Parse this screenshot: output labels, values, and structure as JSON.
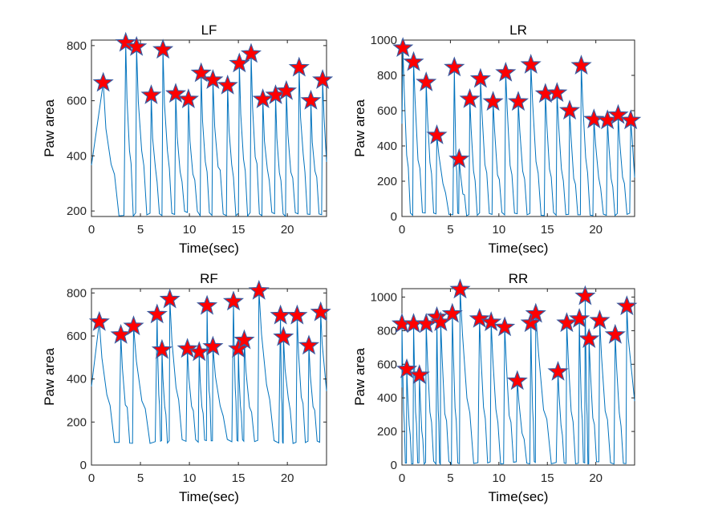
{
  "figure": {
    "background": "#ffffff",
    "line_color": "#0072bd",
    "marker_fill": "#ff0000",
    "marker_edge": "#3a5ba0"
  },
  "chart_data": [
    {
      "type": "line",
      "title": "LF",
      "xlabel": "Time(sec)",
      "ylabel": "Paw area",
      "xlim": [
        0,
        24
      ],
      "ylim": [
        180,
        820
      ],
      "xticks": [
        0,
        5,
        10,
        15,
        20
      ],
      "yticks": [
        200,
        400,
        600,
        800
      ],
      "grid": false,
      "baseline": 180,
      "peaks": [
        {
          "x": 1.2,
          "y": 665
        },
        {
          "x": 3.5,
          "y": 810
        },
        {
          "x": 4.6,
          "y": 795
        },
        {
          "x": 6.1,
          "y": 620
        },
        {
          "x": 7.3,
          "y": 785
        },
        {
          "x": 8.6,
          "y": 625
        },
        {
          "x": 9.9,
          "y": 605
        },
        {
          "x": 11.2,
          "y": 700
        },
        {
          "x": 12.4,
          "y": 675
        },
        {
          "x": 13.9,
          "y": 655
        },
        {
          "x": 15.1,
          "y": 735
        },
        {
          "x": 16.3,
          "y": 770
        },
        {
          "x": 17.5,
          "y": 605
        },
        {
          "x": 18.8,
          "y": 620
        },
        {
          "x": 19.9,
          "y": 635
        },
        {
          "x": 21.2,
          "y": 720
        },
        {
          "x": 22.4,
          "y": 600
        },
        {
          "x": 23.6,
          "y": 675
        }
      ]
    },
    {
      "type": "line",
      "title": "LR",
      "xlabel": "Time(sec)",
      "ylabel": "Paw area",
      "xlim": [
        0,
        24
      ],
      "ylim": [
        0,
        1000
      ],
      "xticks": [
        0,
        5,
        10,
        15,
        20
      ],
      "yticks": [
        0,
        200,
        400,
        600,
        800,
        1000
      ],
      "grid": false,
      "baseline": 5,
      "peaks": [
        {
          "x": 0.1,
          "y": 955
        },
        {
          "x": 1.2,
          "y": 875
        },
        {
          "x": 2.5,
          "y": 760
        },
        {
          "x": 3.6,
          "y": 460
        },
        {
          "x": 5.4,
          "y": 845
        },
        {
          "x": 5.9,
          "y": 325
        },
        {
          "x": 7.0,
          "y": 665
        },
        {
          "x": 8.1,
          "y": 780
        },
        {
          "x": 9.4,
          "y": 650
        },
        {
          "x": 10.7,
          "y": 815
        },
        {
          "x": 12.0,
          "y": 650
        },
        {
          "x": 13.3,
          "y": 860
        },
        {
          "x": 14.8,
          "y": 695
        },
        {
          "x": 16.0,
          "y": 700
        },
        {
          "x": 17.3,
          "y": 600
        },
        {
          "x": 18.5,
          "y": 855
        },
        {
          "x": 19.8,
          "y": 550
        },
        {
          "x": 21.2,
          "y": 545
        },
        {
          "x": 22.3,
          "y": 575
        },
        {
          "x": 23.6,
          "y": 545
        }
      ]
    },
    {
      "type": "line",
      "title": "RF",
      "xlabel": "Time(sec)",
      "ylabel": "Paw area",
      "xlim": [
        0,
        24
      ],
      "ylim": [
        0,
        820
      ],
      "xticks": [
        0,
        5,
        10,
        15,
        20
      ],
      "yticks": [
        0,
        200,
        400,
        600,
        800
      ],
      "grid": false,
      "baseline": 100,
      "peaks": [
        {
          "x": 0.8,
          "y": 665
        },
        {
          "x": 3.0,
          "y": 605
        },
        {
          "x": 4.3,
          "y": 645
        },
        {
          "x": 6.7,
          "y": 700
        },
        {
          "x": 7.2,
          "y": 535
        },
        {
          "x": 8.0,
          "y": 770
        },
        {
          "x": 9.8,
          "y": 540
        },
        {
          "x": 11.0,
          "y": 525
        },
        {
          "x": 11.8,
          "y": 740
        },
        {
          "x": 12.4,
          "y": 550
        },
        {
          "x": 14.5,
          "y": 760
        },
        {
          "x": 15.0,
          "y": 540
        },
        {
          "x": 15.6,
          "y": 580
        },
        {
          "x": 17.1,
          "y": 810
        },
        {
          "x": 19.3,
          "y": 695
        },
        {
          "x": 19.6,
          "y": 595
        },
        {
          "x": 21.0,
          "y": 695
        },
        {
          "x": 22.2,
          "y": 555
        },
        {
          "x": 23.4,
          "y": 710
        }
      ]
    },
    {
      "type": "line",
      "title": "RR",
      "xlabel": "Time(sec)",
      "ylabel": "Paw area",
      "xlim": [
        0,
        24
      ],
      "ylim": [
        0,
        1050
      ],
      "xticks": [
        0,
        5,
        10,
        15,
        20
      ],
      "yticks": [
        0,
        200,
        400,
        600,
        800,
        1000
      ],
      "grid": false,
      "baseline": 5,
      "peaks": [
        {
          "x": 0.0,
          "y": 840
        },
        {
          "x": 0.5,
          "y": 570
        },
        {
          "x": 1.2,
          "y": 840
        },
        {
          "x": 1.8,
          "y": 535
        },
        {
          "x": 2.5,
          "y": 840
        },
        {
          "x": 3.6,
          "y": 880
        },
        {
          "x": 4.0,
          "y": 850
        },
        {
          "x": 5.2,
          "y": 900
        },
        {
          "x": 6.0,
          "y": 1045
        },
        {
          "x": 8.0,
          "y": 870
        },
        {
          "x": 9.2,
          "y": 850
        },
        {
          "x": 10.6,
          "y": 820
        },
        {
          "x": 11.9,
          "y": 500
        },
        {
          "x": 13.3,
          "y": 845
        },
        {
          "x": 13.8,
          "y": 900
        },
        {
          "x": 16.1,
          "y": 555
        },
        {
          "x": 17.0,
          "y": 845
        },
        {
          "x": 18.3,
          "y": 870
        },
        {
          "x": 18.9,
          "y": 1005
        },
        {
          "x": 19.3,
          "y": 750
        },
        {
          "x": 20.4,
          "y": 860
        },
        {
          "x": 22.0,
          "y": 775
        },
        {
          "x": 23.2,
          "y": 945
        }
      ]
    }
  ]
}
